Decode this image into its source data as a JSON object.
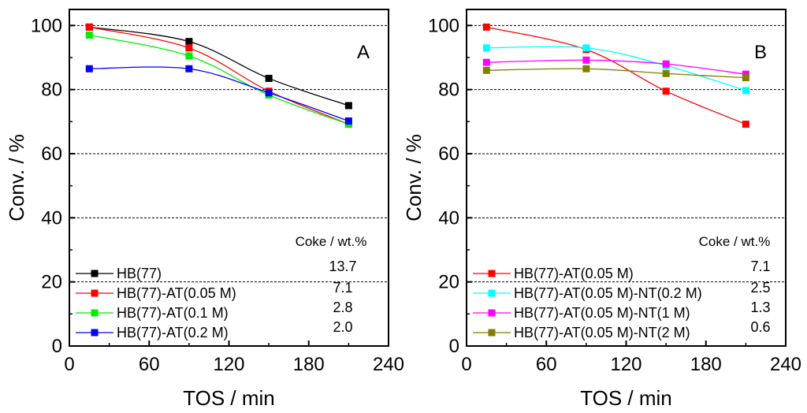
{
  "chart_data": [
    {
      "type": "line",
      "panel": "A",
      "xlabel": "TOS / min",
      "ylabel": "Conv. / %",
      "xlim": [
        0,
        240
      ],
      "ylim": [
        0,
        105
      ],
      "xticks": [
        0,
        60,
        120,
        180,
        240
      ],
      "yticks": [
        0,
        20,
        40,
        60,
        80,
        100
      ],
      "grid_y": [
        20,
        40,
        60,
        80,
        100
      ],
      "coke_title": "Coke / wt.%",
      "x": [
        15,
        90,
        150,
        210
      ],
      "series": [
        {
          "name": "HB(77)",
          "color": "#000000",
          "coke": "13.7",
          "values": [
            99.5,
            95,
            83.5,
            75
          ]
        },
        {
          "name": "HB(77)-AT(0.05 M)",
          "color": "#ff0000",
          "coke": "7.1",
          "values": [
            99.5,
            93,
            79.5,
            69.2
          ]
        },
        {
          "name": "HB(77)-AT(0.1 M)",
          "color": "#00ee00",
          "coke": "2.8",
          "values": [
            97,
            90.5,
            78.3,
            69.2
          ]
        },
        {
          "name": "HB(77)-AT(0.2 M)",
          "color": "#0000ff",
          "coke": "2.0",
          "values": [
            86.5,
            86.5,
            79,
            70.2
          ]
        }
      ]
    },
    {
      "type": "line",
      "panel": "B",
      "xlabel": "TOS / min",
      "ylabel": "Conv. / %",
      "xlim": [
        0,
        240
      ],
      "ylim": [
        0,
        105
      ],
      "xticks": [
        0,
        60,
        120,
        180,
        240
      ],
      "yticks": [
        0,
        20,
        40,
        60,
        80,
        100
      ],
      "grid_y": [
        20,
        40,
        60,
        80,
        100
      ],
      "coke_title": "Coke / wt.%",
      "x": [
        15,
        90,
        150,
        210
      ],
      "series": [
        {
          "name": "HB(77)-AT(0.05 M)",
          "color": "#ff0000",
          "coke": "7.1",
          "values": [
            99.5,
            92.5,
            79.5,
            69.2
          ]
        },
        {
          "name": "HB(77)-AT(0.05 M)-NT(0.2 M)",
          "color": "#00ffff",
          "coke": "2.5",
          "values": [
            93,
            93,
            87.5,
            79.7
          ]
        },
        {
          "name": "HB(77)-AT(0.05 M)-NT(1 M)",
          "color": "#ff00ff",
          "coke": "1.3",
          "values": [
            88.5,
            89.2,
            88,
            84.8
          ]
        },
        {
          "name": "HB(77)-AT(0.05 M)-NT(2 M)",
          "color": "#808000",
          "coke": "0.6",
          "values": [
            86,
            86.5,
            85,
            83.7
          ]
        }
      ]
    }
  ]
}
